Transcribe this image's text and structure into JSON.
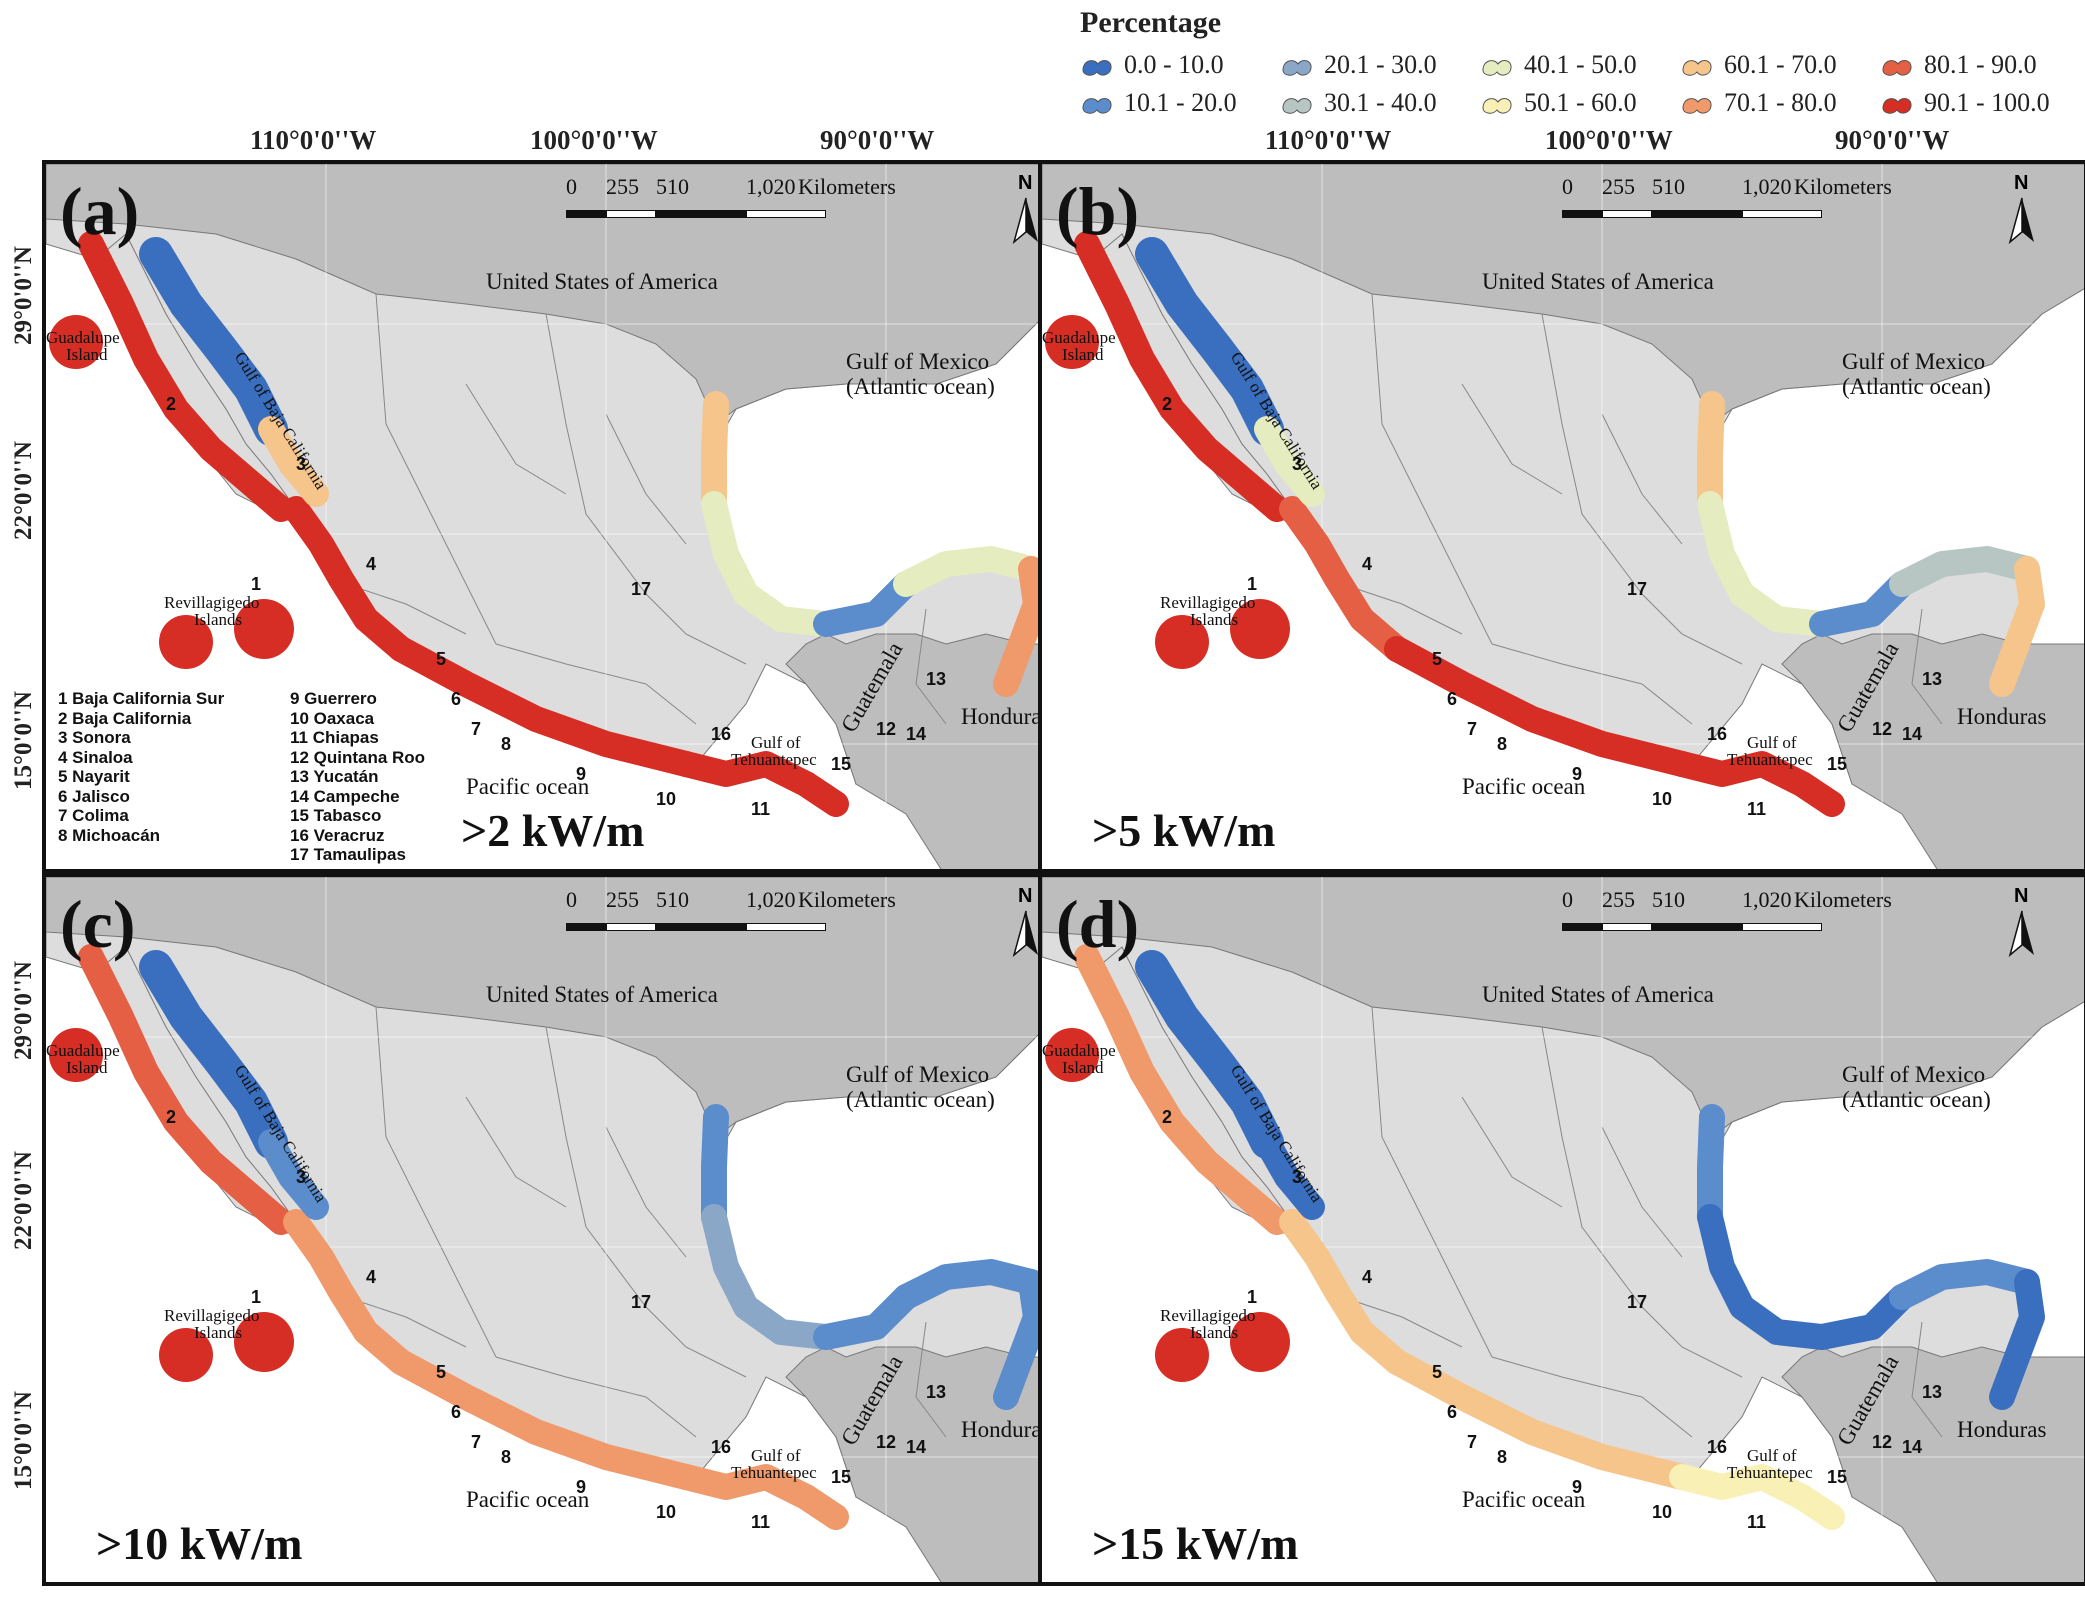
{
  "legend": {
    "title": "Percentage",
    "items": [
      {
        "label": "0.0 - 10.0",
        "color": "#3a6fbf"
      },
      {
        "label": "10.1 - 20.0",
        "color": "#5b8ccc"
      },
      {
        "label": "20.1 - 30.0",
        "color": "#8aa7c7"
      },
      {
        "label": "30.1 - 40.0",
        "color": "#b7c6c3"
      },
      {
        "label": "40.1 - 50.0",
        "color": "#e5ecbf"
      },
      {
        "label": "50.1 - 60.0",
        "color": "#f8f0b4"
      },
      {
        "label": "60.1 - 70.0",
        "color": "#f6c58c"
      },
      {
        "label": "70.1 - 80.0",
        "color": "#f0996a"
      },
      {
        "label": "80.1 - 90.0",
        "color": "#e45f43"
      },
      {
        "label": "90.1 - 100.0",
        "color": "#d62d24"
      }
    ]
  },
  "axes": {
    "lon_labels": [
      "110°0'0''W",
      "100°0'0''W",
      "90°0'0''W"
    ],
    "lat_labels": [
      "29°0'0''N",
      "22°0'0''N",
      "15°0'0''N"
    ]
  },
  "scale": {
    "ticks": [
      "0",
      "255",
      "510",
      "1,020"
    ],
    "unit": "Kilometers"
  },
  "north_label": "N",
  "place_names": {
    "usa": "United States of America",
    "gulf_mexico": "Gulf of Mexico",
    "atlantic": "(Atlantic ocean)",
    "gulf_baja": "Gulf of Baja California",
    "guadalupe_1": "Guadalupe",
    "guadalupe_2": "Island",
    "revilla_1": "Revillagigedo",
    "revilla_2": "Islands",
    "pacific": "Pacific ocean",
    "tehuantepec_1": "Gulf of",
    "tehuantepec_2": "Tehuantepec",
    "guatemala": "Guatemala",
    "honduras": "Honduras"
  },
  "states": [
    "1 Baja California Sur",
    "2 Baja California",
    "3 Sonora",
    "4 Sinaloa",
    "5 Nayarit",
    "6 Jalisco",
    "7 Colima",
    "8 Michoacán",
    "9 Guerrero",
    "10 Oaxaca",
    "11 Chiapas",
    "12 Quintana Roo",
    "13 Yucatán",
    "14 Campeche",
    "15 Tabasco",
    "16 Veracruz",
    "17 Tamaulipas"
  ],
  "state_numbers": [
    "1",
    "2",
    "3",
    "4",
    "5",
    "6",
    "7",
    "8",
    "9",
    "10",
    "11",
    "12",
    "13",
    "14",
    "15",
    "16",
    "17"
  ],
  "panels": [
    {
      "label": "(a)",
      "threshold": ">2 kW/m",
      "show_state_list": true,
      "colors": {
        "pacific_north": 9,
        "guadalupe": 9,
        "revillagigedo": 9,
        "pacific_central": 9,
        "pacific_south": 9,
        "tehuantepec": 9,
        "baja_gulf": 0,
        "baja_gulf_south": 6,
        "gulf_tamaulipas": 6,
        "gulf_veracruz": 4,
        "gulf_campeche": 1,
        "gulf_yucatan": 4,
        "caribbean": 7
      }
    },
    {
      "label": "(b)",
      "threshold": ">5 kW/m",
      "show_state_list": false,
      "colors": {
        "pacific_north": 9,
        "guadalupe": 9,
        "revillagigedo": 9,
        "pacific_central": 8,
        "pacific_south": 9,
        "tehuantepec": 9,
        "baja_gulf": 0,
        "baja_gulf_south": 4,
        "gulf_tamaulipas": 6,
        "gulf_veracruz": 4,
        "gulf_campeche": 1,
        "gulf_yucatan": 3,
        "caribbean": 6
      }
    },
    {
      "label": "(c)",
      "threshold": ">10 kW/m",
      "show_state_list": false,
      "colors": {
        "pacific_north": 8,
        "guadalupe": 9,
        "revillagigedo": 9,
        "pacific_central": 7,
        "pacific_south": 7,
        "tehuantepec": 7,
        "baja_gulf": 0,
        "baja_gulf_south": 1,
        "gulf_tamaulipas": 1,
        "gulf_veracruz": 2,
        "gulf_campeche": 1,
        "gulf_yucatan": 1,
        "caribbean": 1
      }
    },
    {
      "label": "(d)",
      "threshold": ">15 kW/m",
      "show_state_list": false,
      "colors": {
        "pacific_north": 7,
        "guadalupe": 9,
        "revillagigedo": 9,
        "pacific_central": 6,
        "pacific_south": 6,
        "tehuantepec": 5,
        "baja_gulf": 0,
        "baja_gulf_south": 0,
        "gulf_tamaulipas": 1,
        "gulf_veracruz": 0,
        "gulf_campeche": 0,
        "gulf_yucatan": 1,
        "caribbean": 0
      }
    }
  ]
}
